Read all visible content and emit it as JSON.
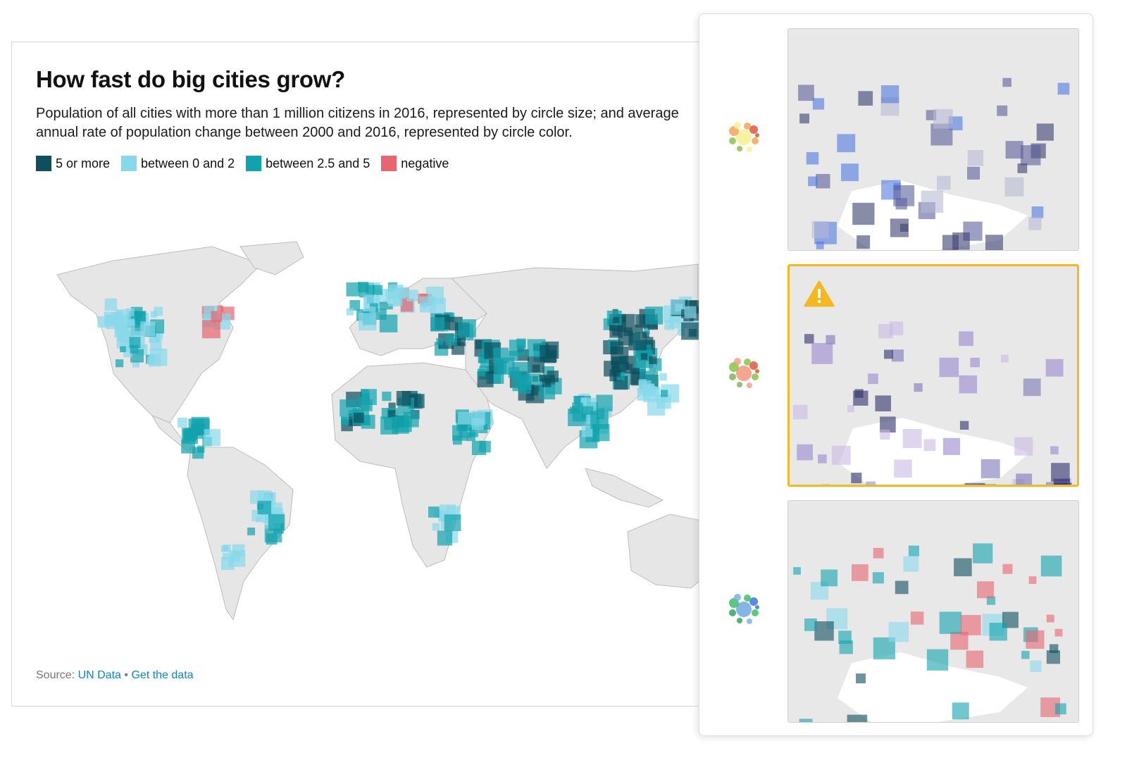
{
  "chart": {
    "title": "How fast do big cities grow?",
    "subtitle_line1": "Population of all cities with more than 1 million citizens in 2016, represented by circle size; and average",
    "subtitle_line2": "annual rate of population change between 2000 and 2016, represented by circle color.",
    "legend": [
      {
        "label": "5 or more",
        "color": "#0d4f5c"
      },
      {
        "label": "between 0 and 2",
        "color": "#88d8eb"
      },
      {
        "label": "between 2.5 and 5",
        "color": "#11a2ad"
      },
      {
        "label": "negative",
        "color": "#e8646e"
      }
    ],
    "source_label": "Source:",
    "source_link": "UN Data",
    "separator": "•",
    "data_link": "Get the data"
  },
  "palette_panel": {
    "options": [
      {
        "name": "palette-option-warm",
        "icon": "palette-bubbles-icon",
        "colors": [
          "#e0573a",
          "#f2a65a",
          "#f7f19a",
          "#8bc34a"
        ],
        "selected": false
      },
      {
        "name": "palette-option-purple",
        "icon": "palette-bubbles-icon",
        "colors": [
          "#e0573a",
          "#8bc34a",
          "#f4a08a",
          "#7bb661"
        ],
        "selected": true,
        "warning_icon": "warning-icon"
      },
      {
        "name": "palette-option-blue-green",
        "icon": "palette-bubbles-icon",
        "colors": [
          "#3a78d8",
          "#3cbf6a",
          "#7fb0e6",
          "#2ea85a"
        ],
        "selected": false
      }
    ]
  }
}
